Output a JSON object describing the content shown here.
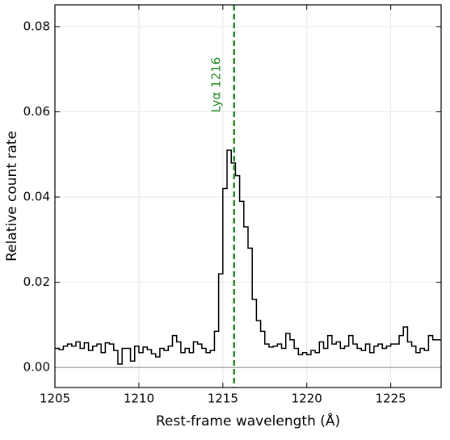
{
  "chart_data": {
    "type": "step",
    "xlabel": "Rest-frame wavelength (Å)",
    "ylabel": "Relative count rate",
    "x": [
      1205.125,
      1205.375,
      1205.625,
      1205.875,
      1206.125,
      1206.375,
      1206.625,
      1206.875,
      1207.125,
      1207.375,
      1207.625,
      1207.875,
      1208.125,
      1208.375,
      1208.625,
      1208.875,
      1209.125,
      1209.375,
      1209.625,
      1209.875,
      1210.125,
      1210.375,
      1210.625,
      1210.875,
      1211.125,
      1211.375,
      1211.625,
      1211.875,
      1212.125,
      1212.375,
      1212.625,
      1212.875,
      1213.125,
      1213.375,
      1213.625,
      1213.875,
      1214.125,
      1214.375,
      1214.625,
      1214.875,
      1215.125,
      1215.375,
      1215.625,
      1215.875,
      1216.125,
      1216.375,
      1216.625,
      1216.875,
      1217.125,
      1217.375,
      1217.625,
      1217.875,
      1218.125,
      1218.375,
      1218.625,
      1218.875,
      1219.125,
      1219.375,
      1219.625,
      1219.875,
      1220.125,
      1220.375,
      1220.625,
      1220.875,
      1221.125,
      1221.375,
      1221.625,
      1221.875,
      1222.125,
      1222.375,
      1222.625,
      1222.875,
      1223.125,
      1223.375,
      1223.625,
      1223.875,
      1224.125,
      1224.375,
      1224.625,
      1224.875,
      1225.125,
      1225.375,
      1225.625,
      1225.875,
      1226.125,
      1226.375,
      1226.625,
      1226.875,
      1227.125,
      1227.375,
      1227.625,
      1227.875
    ],
    "series": [
      {
        "color": "#000000",
        "values": [
          0.0045,
          0.0042,
          0.005,
          0.0055,
          0.005,
          0.006,
          0.0045,
          0.0058,
          0.004,
          0.005,
          0.0055,
          0.0035,
          0.0058,
          0.0055,
          0.004,
          0.0008,
          0.0045,
          0.0045,
          0.0015,
          0.005,
          0.0035,
          0.0048,
          0.0042,
          0.0032,
          0.0025,
          0.0045,
          0.004,
          0.005,
          0.0075,
          0.006,
          0.0035,
          0.0045,
          0.0035,
          0.006,
          0.0055,
          0.0045,
          0.0035,
          0.004,
          0.0085,
          0.022,
          0.042,
          0.051,
          0.048,
          0.045,
          0.039,
          0.033,
          0.028,
          0.016,
          0.011,
          0.0085,
          0.0055,
          0.0048,
          0.005,
          0.0055,
          0.0045,
          0.008,
          0.0065,
          0.0045,
          0.003,
          0.0035,
          0.003,
          0.004,
          0.0035,
          0.006,
          0.0045,
          0.0075,
          0.0055,
          0.006,
          0.0045,
          0.005,
          0.0075,
          0.0055,
          0.0045,
          0.004,
          0.0055,
          0.0035,
          0.005,
          0.0055,
          0.0045,
          0.005,
          0.0055,
          0.0055,
          0.0075,
          0.0095,
          0.006,
          0.005,
          0.0035,
          0.0045,
          0.004,
          0.0075,
          0.0065,
          0.0065
        ]
      }
    ],
    "xlim": [
      1205,
      1228
    ],
    "xticks": [
      1205,
      1210,
      1215,
      1220,
      1225
    ],
    "ylim": [
      -0.0047,
      0.0851
    ],
    "yticks": [
      {
        "value": 0,
        "label": "0.00"
      },
      {
        "value": 0.02,
        "label": "0.02"
      },
      {
        "value": 0.04,
        "label": "0.04"
      },
      {
        "value": 0.06,
        "label": "0.06"
      },
      {
        "value": 0.08,
        "label": "0.08"
      }
    ],
    "grid": true,
    "hline": 0,
    "vline": {
      "x": 1215.67,
      "label": "Lyα 1216",
      "color": "#228B22"
    }
  }
}
